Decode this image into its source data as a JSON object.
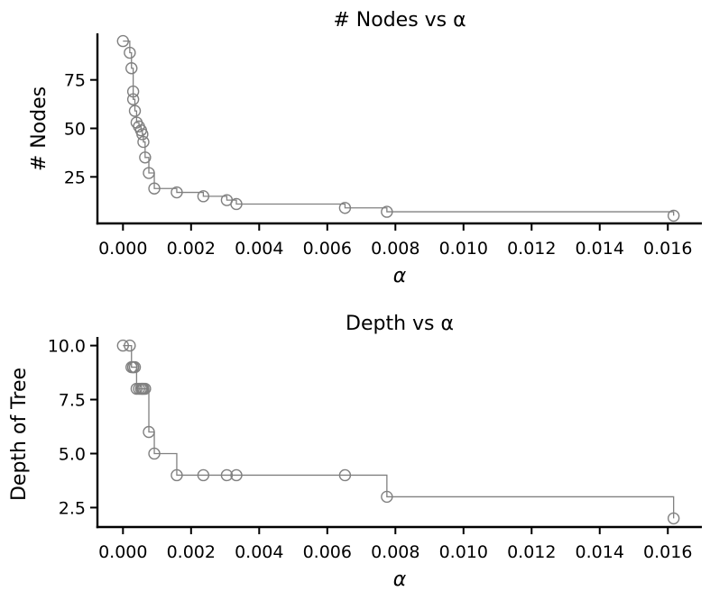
{
  "chart_data": [
    {
      "type": "line",
      "subtype": "step-post-with-markers",
      "title": "# Nodes vs α",
      "xlabel": "α",
      "ylabel": "# Nodes",
      "xlim": [
        -0.00075,
        0.017
      ],
      "ylim": [
        1,
        99
      ],
      "xticks": [
        0.0,
        0.002,
        0.004,
        0.006,
        0.008,
        0.01,
        0.012,
        0.014,
        0.016
      ],
      "xtick_labels": [
        "0.000",
        "0.002",
        "0.004",
        "0.006",
        "0.008",
        "0.010",
        "0.012",
        "0.014",
        "0.016"
      ],
      "yticks": [
        25,
        50,
        75
      ],
      "ytick_labels": [
        "25",
        "50",
        "75"
      ],
      "grid": false,
      "series": [
        {
          "color": "#808080",
          "marker": "open-circle",
          "x": [
            0.0,
            0.0002,
            0.00025,
            0.0003,
            0.0003,
            0.00035,
            0.0004,
            0.00047,
            0.00053,
            0.00057,
            0.0006,
            0.00065,
            0.00076,
            0.00092,
            0.00158,
            0.00236,
            0.00305,
            0.00333,
            0.00652,
            0.00775,
            0.01617
          ],
          "y": [
            95,
            89,
            81,
            69,
            65,
            59,
            53,
            51,
            49,
            47,
            43,
            35,
            27,
            19,
            17,
            15,
            13,
            11,
            9,
            7,
            5
          ]
        }
      ]
    },
    {
      "type": "line",
      "subtype": "step-post-with-markers",
      "title": "Depth vs α",
      "xlabel": "α",
      "ylabel": "Depth of Tree",
      "xlim": [
        -0.00075,
        0.017
      ],
      "ylim": [
        1.6,
        10.4
      ],
      "xticks": [
        0.0,
        0.002,
        0.004,
        0.006,
        0.008,
        0.01,
        0.012,
        0.014,
        0.016
      ],
      "xtick_labels": [
        "0.000",
        "0.002",
        "0.004",
        "0.006",
        "0.008",
        "0.010",
        "0.012",
        "0.014",
        "0.016"
      ],
      "yticks": [
        2.5,
        5.0,
        7.5,
        10.0
      ],
      "ytick_labels": [
        "2.5",
        "5.0",
        "7.5",
        "10.0"
      ],
      "grid": false,
      "series": [
        {
          "color": "#808080",
          "marker": "open-circle",
          "x": [
            0.0,
            0.0002,
            0.00025,
            0.0003,
            0.0003,
            0.00035,
            0.0004,
            0.00047,
            0.00053,
            0.00057,
            0.0006,
            0.00065,
            0.00076,
            0.00092,
            0.00158,
            0.00236,
            0.00305,
            0.00333,
            0.00652,
            0.00775,
            0.01617
          ],
          "y": [
            10,
            10,
            9,
            9,
            9,
            9,
            8,
            8,
            8,
            8,
            8,
            8,
            6,
            5,
            4,
            4,
            4,
            4,
            4,
            3,
            2
          ]
        }
      ]
    }
  ]
}
